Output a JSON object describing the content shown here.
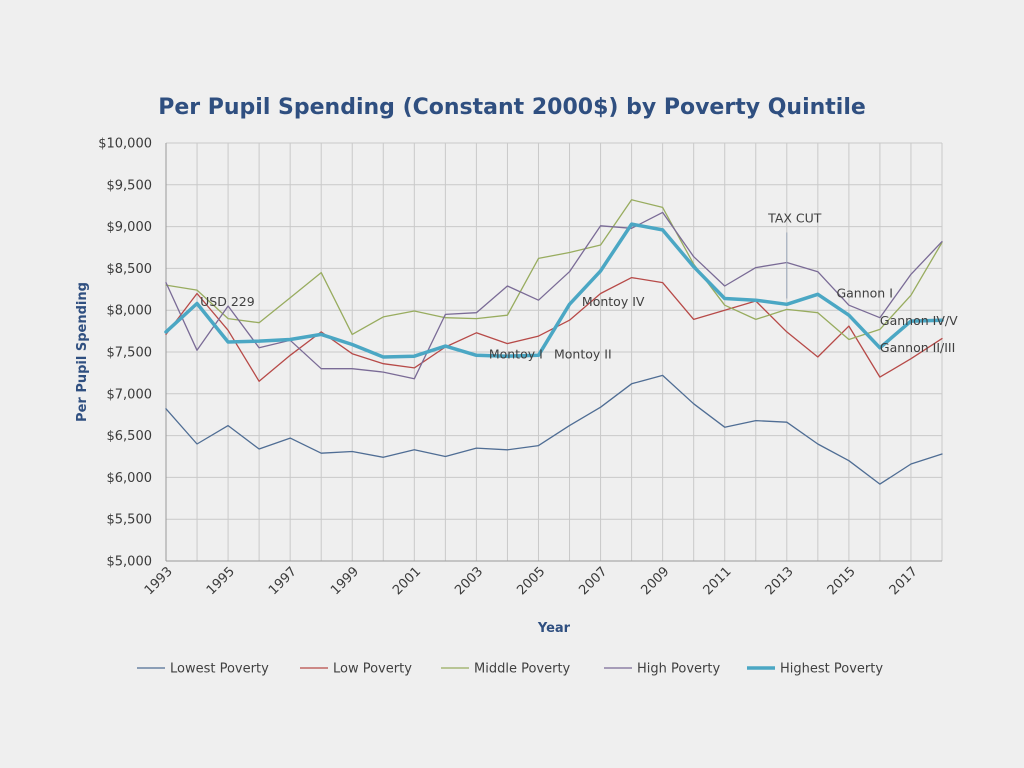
{
  "chart_data": {
    "type": "line",
    "title": "Per Pupil Spending (Constant 2000$) by Poverty Quintile",
    "xlabel": "Year",
    "ylabel": "Per Pupil Spending",
    "ylim": [
      5000,
      10000
    ],
    "xlim": [
      1993,
      2018
    ],
    "grid": true,
    "legend": "bottom",
    "y_ticks": [
      {
        "value": 5000,
        "label": "$5,000"
      },
      {
        "value": 5500,
        "label": "$5,500"
      },
      {
        "value": 6000,
        "label": "$6,000"
      },
      {
        "value": 6500,
        "label": "$6,500"
      },
      {
        "value": 7000,
        "label": "$7,000"
      },
      {
        "value": 7500,
        "label": "$7,500"
      },
      {
        "value": 8000,
        "label": "$8,000"
      },
      {
        "value": 8500,
        "label": "$8,500"
      },
      {
        "value": 9000,
        "label": "$9,000"
      },
      {
        "value": 9500,
        "label": "$9,500"
      },
      {
        "value": 10000,
        "label": "$10,000"
      }
    ],
    "x_ticks": [
      {
        "value": 1993,
        "label": "1993"
      },
      {
        "value": 1995,
        "label": "1995"
      },
      {
        "value": 1997,
        "label": "1997"
      },
      {
        "value": 1999,
        "label": "1999"
      },
      {
        "value": 2001,
        "label": "2001"
      },
      {
        "value": 2003,
        "label": "2003"
      },
      {
        "value": 2005,
        "label": "2005"
      },
      {
        "value": 2007,
        "label": "2007"
      },
      {
        "value": 2009,
        "label": "2009"
      },
      {
        "value": 2011,
        "label": "2011"
      },
      {
        "value": 2013,
        "label": "2013"
      },
      {
        "value": 2015,
        "label": "2015"
      },
      {
        "value": 2017,
        "label": "2017"
      }
    ],
    "x": [
      1993,
      1994,
      1995,
      1996,
      1997,
      1998,
      1999,
      2000,
      2001,
      2002,
      2003,
      2004,
      2005,
      2006,
      2007,
      2008,
      2009,
      2010,
      2011,
      2012,
      2013,
      2014,
      2015,
      2016,
      2017,
      2018
    ],
    "series": [
      {
        "name": "Lowest Poverty",
        "color": "#4f6d94",
        "width": 1.3,
        "values": [
          6820,
          6400,
          6620,
          6340,
          6470,
          6290,
          6310,
          6240,
          6330,
          6250,
          6350,
          6330,
          6380,
          6620,
          6840,
          7120,
          7220,
          6880,
          6600,
          6680,
          6660,
          6400,
          6200,
          5920,
          6160,
          6280
        ]
      },
      {
        "name": "Low Poverty",
        "color": "#b74a48",
        "width": 1.3,
        "values": [
          7710,
          8200,
          7760,
          7150,
          7460,
          7740,
          7480,
          7360,
          7310,
          7560,
          7730,
          7600,
          7690,
          7880,
          8200,
          8390,
          8330,
          7890,
          8000,
          8110,
          7740,
          7440,
          7810,
          7200,
          7420,
          7660
        ]
      },
      {
        "name": "Middle Poverty",
        "color": "#98ac5f",
        "width": 1.3,
        "values": [
          8300,
          8240,
          7900,
          7850,
          8150,
          8450,
          7710,
          7920,
          7990,
          7910,
          7900,
          7940,
          8620,
          8690,
          8780,
          9320,
          9230,
          8550,
          8060,
          7890,
          8010,
          7970,
          7650,
          7770,
          8180,
          8810
        ]
      },
      {
        "name": "High Poverty",
        "color": "#7a6b96",
        "width": 1.3,
        "values": [
          8330,
          7520,
          8050,
          7550,
          7640,
          7300,
          7300,
          7260,
          7180,
          7950,
          7970,
          8290,
          8120,
          8460,
          9010,
          8980,
          9170,
          8640,
          8290,
          8510,
          8570,
          8460,
          8060,
          7910,
          8430,
          8820
        ]
      },
      {
        "name": "Highest Poverty",
        "color": "#4ba7c4",
        "width": 3.5,
        "values": [
          7740,
          8080,
          7620,
          7630,
          7650,
          7710,
          7590,
          7440,
          7450,
          7570,
          7460,
          7450,
          7460,
          8070,
          8470,
          9030,
          8960,
          8520,
          8140,
          8120,
          8070,
          8190,
          7940,
          7550,
          7870,
          7880
        ]
      }
    ],
    "annotations": [
      {
        "text": "USD 229",
        "x": 1994.1,
        "y": 8050
      },
      {
        "text": "Montoy IV",
        "x": 2006.4,
        "y": 8050
      },
      {
        "text": "Montoy I",
        "x": 2003.4,
        "y": 7420
      },
      {
        "text": "Montoy II",
        "x": 2005.5,
        "y": 7420
      },
      {
        "text": "TAX CUT",
        "x": 2012.4,
        "y": 9050
      },
      {
        "text": "Gannon I",
        "x": 2014.6,
        "y": 8150
      },
      {
        "text": "Gannon IV/V",
        "x": 2016.0,
        "y": 7820
      },
      {
        "text": "Gannon II/III",
        "x": 2016.0,
        "y": 7500
      }
    ]
  }
}
